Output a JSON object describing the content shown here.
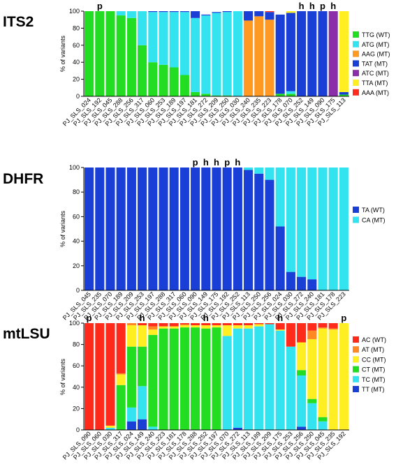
{
  "colors": {
    "TTG": "#22dd22",
    "ATG": "#33e4f0",
    "AAG": "#ff9922",
    "TAT": "#1a3fd6",
    "ATC": "#8a2fa8",
    "TTA": "#ffee22",
    "AAA": "#ff2a1a",
    "TA": "#1a3fd6",
    "CA": "#33e4f0",
    "AC": "#ff2a1a",
    "AT": "#ff8822",
    "CC": "#ffee22",
    "CT": "#22dd22",
    "TC": "#33e4f0",
    "TT": "#1a3fd6"
  },
  "chart_data": [
    {
      "type": "bar",
      "stacked": true,
      "title": "ITS2",
      "ylabel": "% of variants",
      "ylim": [
        0,
        100
      ],
      "yticks": [
        0,
        20,
        40,
        60,
        80,
        100
      ],
      "legend_position": "right",
      "categories": [
        "PJ_SLS_024",
        "PJ_SLS_192",
        "PJ_SLS_045",
        "PJ_SLS_288",
        "PJ_SLS_256",
        "PJ_SLS_317",
        "PJ_SLS_060",
        "PJ_SLS_253",
        "PJ_SLS_189",
        "PJ_SLS_197",
        "PJ_SLS_181",
        "PJ_SLS_272",
        "PJ_SLS_209",
        "PJ_SLS_250",
        "PJ_SLS_030",
        "PJ_SLS_240",
        "PJ_SLS_235",
        "PJ_SLS_223",
        "PJ_SLS_178",
        "PJ_SLS_070",
        "PJ_SLS_252",
        "PJ_SLS_149",
        "PJ_SLS_090",
        "PJ_SLS_175",
        "PJ_SLS_113"
      ],
      "markers": [
        "",
        "p",
        "",
        "",
        "",
        "",
        "",
        "",
        "",
        "",
        "",
        "",
        "",
        "",
        "",
        "",
        "",
        "",
        "",
        "",
        "h",
        "h",
        "p",
        "h",
        ""
      ],
      "series": [
        {
          "name": "TTG (WT)",
          "key": "TTG",
          "values": [
            100,
            100,
            100,
            95,
            92,
            60,
            40,
            37,
            34,
            25,
            5,
            3,
            1,
            1,
            0,
            0,
            0,
            0,
            3,
            3,
            0,
            0,
            0,
            0,
            2
          ]
        },
        {
          "name": "ATG (MT)",
          "key": "ATG",
          "values": [
            0,
            0,
            0,
            5,
            8,
            40,
            59,
            62,
            65,
            74,
            87,
            92,
            97,
            98,
            100,
            0,
            0,
            0,
            0,
            3,
            0,
            0,
            0,
            0,
            0
          ]
        },
        {
          "name": "AAG (MT)",
          "key": "AAG",
          "values": [
            0,
            0,
            0,
            0,
            0,
            0,
            0,
            0,
            0,
            0,
            0,
            0,
            0,
            0,
            0,
            89,
            94,
            90,
            0,
            0,
            0,
            0,
            0,
            0,
            0
          ]
        },
        {
          "name": "TAT (MT)",
          "key": "TAT",
          "values": [
            0,
            0,
            0,
            0,
            0,
            0,
            1,
            1,
            1,
            1,
            8,
            1,
            1,
            1,
            0,
            11,
            6,
            9,
            93,
            92,
            100,
            100,
            100,
            0,
            3
          ]
        },
        {
          "name": "ATC (MT)",
          "key": "ATC",
          "values": [
            0,
            0,
            0,
            0,
            0,
            0,
            0,
            0,
            0,
            0,
            0,
            0,
            0,
            0,
            0,
            0,
            0,
            0,
            0,
            0,
            0,
            0,
            0,
            100,
            0
          ]
        },
        {
          "name": "TTA (MT)",
          "key": "TTA",
          "values": [
            0,
            0,
            0,
            0,
            0,
            0,
            0,
            0,
            0,
            0,
            0,
            0,
            0,
            0,
            0,
            0,
            0,
            0,
            0,
            2,
            0,
            0,
            0,
            0,
            95
          ]
        },
        {
          "name": "AAA (MT)",
          "key": "AAA",
          "values": [
            0,
            0,
            0,
            0,
            0,
            0,
            0,
            0,
            0,
            0,
            0,
            0,
            0,
            0,
            0,
            0,
            0,
            1,
            0,
            0,
            0,
            0,
            0,
            0,
            0
          ]
        }
      ]
    },
    {
      "type": "bar",
      "stacked": true,
      "title": "DHFR",
      "ylabel": "% of variants",
      "ylim": [
        0,
        100
      ],
      "yticks": [
        0,
        20,
        40,
        60,
        80,
        100
      ],
      "legend_position": "right",
      "categories": [
        "PJ_SLS_045",
        "PJ_SLS_235",
        "PJ_SLS_070",
        "PJ_SLS_189",
        "PJ_SLS_209",
        "PJ_SLS_253",
        "PJ_SLS_197",
        "PJ_SLS_288",
        "PJ_SLS_317",
        "PJ_SLS_060",
        "PJ_SLS_090",
        "PJ_SLS_149",
        "PJ_SLS_175",
        "PJ_SLS_192",
        "PJ_SLS_252",
        "PJ_SLS_113",
        "PJ_SLS_250",
        "PJ_SLS_256",
        "PJ_SLS_024",
        "PJ_SLS_030",
        "PJ_SLS_272",
        "PJ_SLS_240",
        "PJ_SLS_181",
        "PJ_SLS_178",
        "PJ_SLS_223"
      ],
      "markers": [
        "",
        "",
        "",
        "",
        "",
        "",
        "",
        "",
        "",
        "",
        "p",
        "h",
        "h",
        "p",
        "h",
        "",
        "",
        "",
        "",
        "",
        "",
        "",
        "",
        "",
        ""
      ],
      "series": [
        {
          "name": "TA (WT)",
          "key": "TA",
          "values": [
            100,
            100,
            100,
            100,
            100,
            100,
            100,
            100,
            100,
            100,
            100,
            100,
            100,
            100,
            100,
            98,
            95,
            90,
            52,
            15,
            11,
            9,
            0,
            0,
            0
          ]
        },
        {
          "name": "CA (MT)",
          "key": "CA",
          "values": [
            0,
            0,
            0,
            0,
            0,
            0,
            0,
            0,
            0,
            0,
            0,
            0,
            0,
            0,
            0,
            2,
            5,
            10,
            48,
            85,
            89,
            91,
            100,
            100,
            100
          ]
        }
      ]
    },
    {
      "type": "bar",
      "stacked": true,
      "title": "mtLSU",
      "ylabel": "% of variants",
      "ylim": [
        0,
        100
      ],
      "yticks": [
        0,
        20,
        40,
        60,
        80,
        100
      ],
      "legend_position": "right",
      "categories": [
        "PJ_SLS_090",
        "PJ_SLS_060",
        "PJ_SLS_030",
        "PJ_SLS_317",
        "PJ_SLS_024",
        "PJ_SLS_149",
        "PJ_SLS_240",
        "PJ_SLS_223",
        "PJ_SLS_181",
        "PJ_SLS_178",
        "PJ_SLS_288",
        "PJ_SLS_252",
        "PJ_SLS_197",
        "PJ_SLS_070",
        "PJ_SLS_272",
        "PJ_SLS_113",
        "PJ_SLS_189",
        "PJ_SLS_209",
        "PJ_SLS_175",
        "PJ_SLS_253",
        "PJ_SLS_256",
        "PJ_SLS_250",
        "PJ_SLS_045",
        "PJ_SLS_235",
        "PJ_SLS_192"
      ],
      "markers": [
        "p",
        "",
        "",
        "",
        "",
        "h",
        "",
        "",
        "",
        "",
        "",
        "h",
        "",
        "",
        "",
        "",
        "",
        "",
        "h",
        "",
        "",
        "",
        "",
        "",
        "p"
      ],
      "series": [
        {
          "name": "TT (MT)",
          "key": "TT",
          "values": [
            0,
            0,
            0,
            0,
            8,
            10,
            0,
            0,
            0,
            0,
            0,
            0,
            0,
            0,
            2,
            0,
            0,
            0,
            0,
            0,
            3,
            0,
            0,
            0,
            0
          ]
        },
        {
          "name": "TC (MT)",
          "key": "TC",
          "values": [
            0,
            0,
            2,
            0,
            13,
            31,
            3,
            0,
            0,
            0,
            0,
            0,
            0,
            88,
            93,
            95,
            97,
            99,
            93,
            78,
            48,
            25,
            8,
            0,
            0
          ]
        },
        {
          "name": "CT (MT)",
          "key": "CT",
          "values": [
            0,
            0,
            0,
            42,
            57,
            37,
            86,
            95,
            95,
            96,
            96,
            95,
            96,
            0,
            0,
            0,
            0,
            0,
            0,
            0,
            5,
            4,
            4,
            0,
            0
          ]
        },
        {
          "name": "CC (MT)",
          "key": "CC",
          "values": [
            0,
            0,
            2,
            10,
            20,
            20,
            5,
            2,
            2,
            2,
            2,
            3,
            2,
            10,
            3,
            3,
            2,
            0,
            1,
            0,
            26,
            56,
            83,
            94,
            100
          ]
        },
        {
          "name": "AT (MT)",
          "key": "AT",
          "values": [
            0,
            0,
            0,
            1,
            2,
            0,
            3,
            0,
            0,
            1,
            0,
            0,
            0,
            0,
            0,
            0,
            0,
            0,
            0,
            0,
            0,
            8,
            1,
            1,
            0
          ]
        },
        {
          "name": "AC (WT)",
          "key": "AC",
          "values": [
            100,
            100,
            96,
            47,
            0,
            2,
            3,
            3,
            3,
            1,
            2,
            2,
            2,
            2,
            2,
            2,
            1,
            1,
            6,
            22,
            18,
            7,
            4,
            5,
            0
          ]
        }
      ]
    }
  ]
}
